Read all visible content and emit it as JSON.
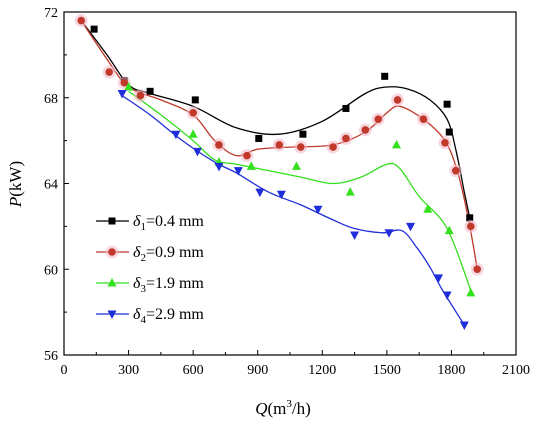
{
  "chart_data": {
    "type": "scatter",
    "title": "",
    "xlabel": {
      "main": "Q",
      "unit_pre": "(m",
      "unit_sup": "3",
      "unit_post": "/h)"
    },
    "ylabel": {
      "main": "P",
      "unit": "(kW)"
    },
    "xlim": [
      0,
      2100
    ],
    "ylim": [
      56,
      72
    ],
    "xticks": [
      0,
      300,
      600,
      900,
      1200,
      1500,
      1800,
      2100
    ],
    "yticks": [
      56,
      60,
      64,
      68,
      72
    ],
    "grid": false,
    "legend_position": "lower-left",
    "series": [
      {
        "name": "δ1=0.4 mm",
        "legend": {
          "sym": "δ",
          "sub": "1",
          "rest": "=0.4 mm"
        },
        "color": "#000000",
        "marker": "square",
        "points": [
          [
            140,
            71.2
          ],
          [
            280,
            68.8
          ],
          [
            400,
            68.3
          ],
          [
            610,
            67.9
          ],
          [
            905,
            66.1
          ],
          [
            1110,
            66.3
          ],
          [
            1310,
            67.5
          ],
          [
            1490,
            69.0
          ],
          [
            1780,
            67.7
          ],
          [
            1790,
            66.4
          ],
          [
            1885,
            62.4
          ]
        ],
        "curve": [
          [
            80,
            71.6
          ],
          [
            200,
            70.0
          ],
          [
            300,
            68.6
          ],
          [
            400,
            68.2
          ],
          [
            600,
            67.6
          ],
          [
            800,
            66.6
          ],
          [
            1000,
            66.3
          ],
          [
            1200,
            66.9
          ],
          [
            1400,
            68.2
          ],
          [
            1500,
            68.5
          ],
          [
            1600,
            68.4
          ],
          [
            1700,
            67.9
          ],
          [
            1780,
            67.0
          ],
          [
            1820,
            65.6
          ],
          [
            1860,
            63.6
          ],
          [
            1885,
            62.4
          ]
        ]
      },
      {
        "name": "δ2=0.9 mm",
        "legend": {
          "sym": "δ",
          "sub": "2",
          "rest": "=0.9 mm"
        },
        "color": "#c0392b",
        "marker": "circle",
        "points": [
          [
            80,
            71.6
          ],
          [
            210,
            69.2
          ],
          [
            280,
            68.7
          ],
          [
            355,
            68.1
          ],
          [
            600,
            67.3
          ],
          [
            720,
            65.8
          ],
          [
            850,
            65.3
          ],
          [
            1000,
            65.8
          ],
          [
            1100,
            65.7
          ],
          [
            1250,
            65.7
          ],
          [
            1310,
            66.1
          ],
          [
            1400,
            66.5
          ],
          [
            1460,
            67.0
          ],
          [
            1550,
            67.9
          ],
          [
            1670,
            67.0
          ],
          [
            1770,
            65.9
          ],
          [
            1820,
            64.6
          ],
          [
            1890,
            62.0
          ],
          [
            1920,
            60.0
          ]
        ],
        "curve": [
          [
            80,
            71.6
          ],
          [
            200,
            69.8
          ],
          [
            300,
            68.5
          ],
          [
            450,
            67.9
          ],
          [
            600,
            67.2
          ],
          [
            700,
            66.0
          ],
          [
            800,
            65.3
          ],
          [
            900,
            65.6
          ],
          [
            1050,
            65.7
          ],
          [
            1250,
            65.8
          ],
          [
            1400,
            66.4
          ],
          [
            1500,
            67.3
          ],
          [
            1560,
            67.6
          ],
          [
            1670,
            67.0
          ],
          [
            1770,
            66.0
          ],
          [
            1830,
            64.5
          ],
          [
            1880,
            62.3
          ],
          [
            1920,
            60.0
          ]
        ]
      },
      {
        "name": "δ3=1.9 mm",
        "legend": {
          "sym": "δ",
          "sub": "3",
          "rest": "=1.9 mm"
        },
        "color": "#35e01e",
        "marker": "triangle-up",
        "points": [
          [
            300,
            68.5
          ],
          [
            600,
            66.3
          ],
          [
            720,
            65.0
          ],
          [
            870,
            64.8
          ],
          [
            1080,
            64.8
          ],
          [
            1330,
            63.6
          ],
          [
            1545,
            65.8
          ],
          [
            1690,
            62.8
          ],
          [
            1790,
            61.8
          ],
          [
            1890,
            58.9
          ]
        ],
        "curve": [
          [
            300,
            68.3
          ],
          [
            450,
            67.2
          ],
          [
            600,
            66.0
          ],
          [
            700,
            65.1
          ],
          [
            800,
            64.9
          ],
          [
            950,
            64.6
          ],
          [
            1100,
            64.3
          ],
          [
            1250,
            64.0
          ],
          [
            1380,
            64.3
          ],
          [
            1500,
            64.9
          ],
          [
            1560,
            64.7
          ],
          [
            1650,
            63.4
          ],
          [
            1780,
            61.9
          ],
          [
            1890,
            59.0
          ]
        ]
      },
      {
        "name": "δ4=2.9 mm",
        "legend": {
          "sym": "δ",
          "sub": "4",
          "rest": "=2.9 mm"
        },
        "color": "#1f2ed8",
        "marker": "triangle-down",
        "points": [
          [
            270,
            68.2
          ],
          [
            520,
            66.3
          ],
          [
            620,
            65.5
          ],
          [
            720,
            64.8
          ],
          [
            810,
            64.6
          ],
          [
            910,
            63.6
          ],
          [
            1010,
            63.5
          ],
          [
            1180,
            62.8
          ],
          [
            1350,
            61.6
          ],
          [
            1510,
            61.7
          ],
          [
            1610,
            62.0
          ],
          [
            1740,
            59.6
          ],
          [
            1780,
            58.8
          ],
          [
            1860,
            57.4
          ]
        ],
        "curve": [
          [
            270,
            68.1
          ],
          [
            400,
            67.2
          ],
          [
            550,
            66.0
          ],
          [
            700,
            65.0
          ],
          [
            800,
            64.5
          ],
          [
            950,
            63.6
          ],
          [
            1100,
            63.0
          ],
          [
            1250,
            62.3
          ],
          [
            1350,
            61.9
          ],
          [
            1480,
            61.7
          ],
          [
            1570,
            61.8
          ],
          [
            1640,
            61.0
          ],
          [
            1700,
            60.1
          ],
          [
            1760,
            59.0
          ],
          [
            1860,
            57.4
          ]
        ]
      }
    ]
  }
}
